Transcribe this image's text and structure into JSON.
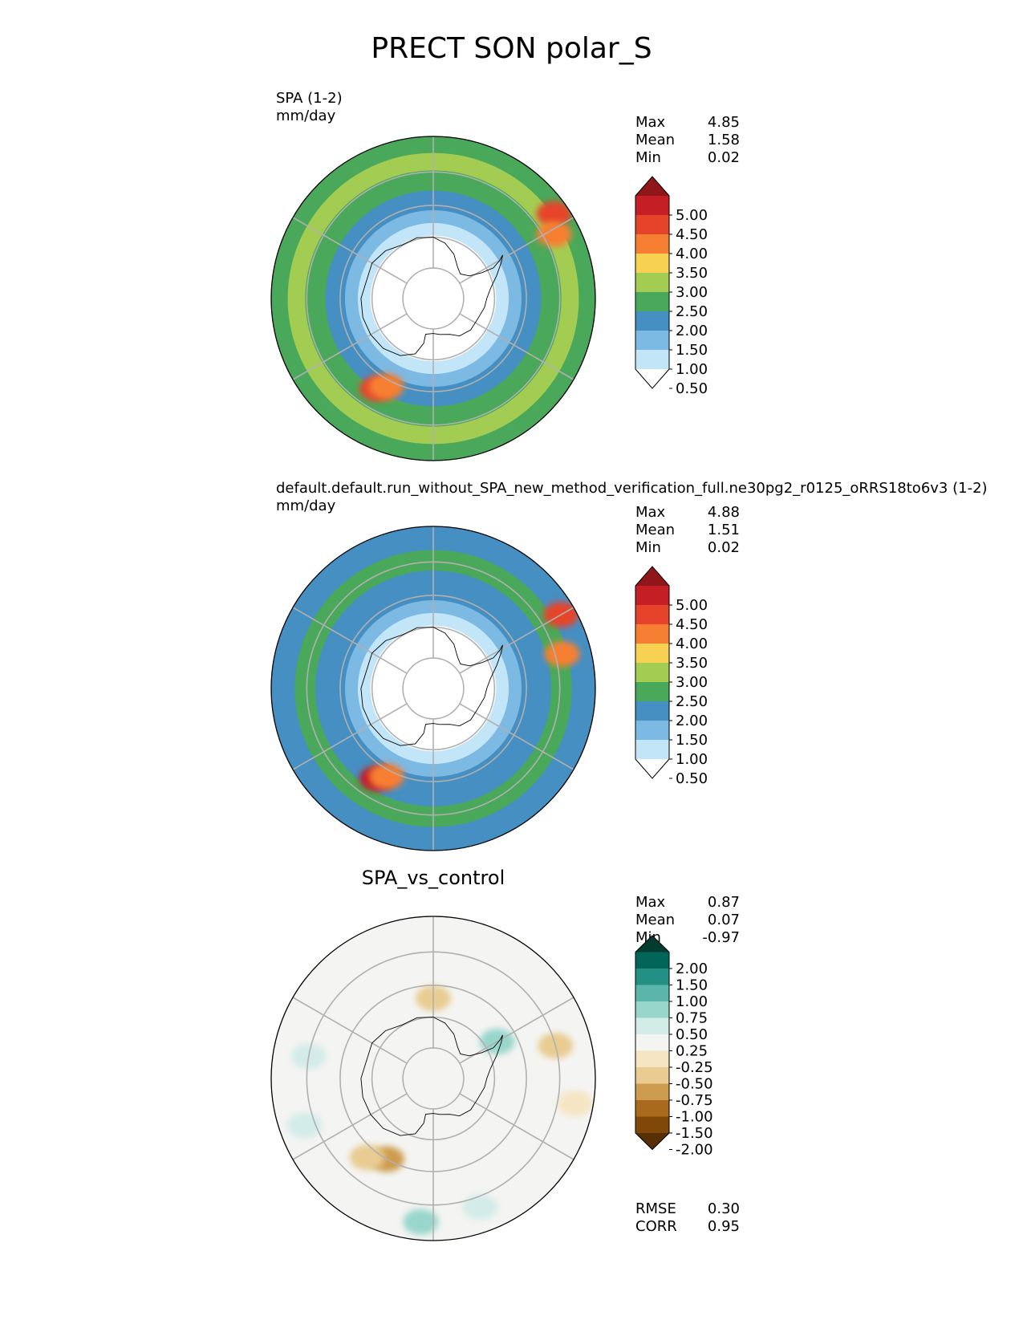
{
  "figure_title": "PRECT SON polar_S",
  "panels": [
    {
      "title": "SPA (1-2)",
      "units": "mm/day",
      "center_title": "",
      "stats": [
        {
          "label": "Max",
          "value": "4.85"
        },
        {
          "label": "Mean",
          "value": "1.58"
        },
        {
          "label": "Min",
          "value": "0.02"
        }
      ],
      "bottom_stats": [],
      "colorbar": {
        "ticks": [
          "5.00",
          "4.50",
          "4.00",
          "3.50",
          "3.00",
          "2.50",
          "2.00",
          "1.50",
          "1.00",
          "0.50"
        ],
        "colors": [
          "#8f1619",
          "#c31f25",
          "#e6442a",
          "#f77f33",
          "#f6d152",
          "#a3cd52",
          "#4aa85a",
          "#458fc2",
          "#7cb9e3",
          "#c3e5f8",
          "#ffffff"
        ]
      }
    },
    {
      "title": "default.default.run_without_SPA_new_method_verification_full.ne30pg2_r0125_oRRS18to6v3 (1-2)",
      "units": "mm/day",
      "center_title": "",
      "stats": [
        {
          "label": "Max",
          "value": "4.88"
        },
        {
          "label": "Mean",
          "value": "1.51"
        },
        {
          "label": "Min",
          "value": "0.02"
        }
      ],
      "bottom_stats": [],
      "colorbar": {
        "ticks": [
          "5.00",
          "4.50",
          "4.00",
          "3.50",
          "3.00",
          "2.50",
          "2.00",
          "1.50",
          "1.00",
          "0.50"
        ],
        "colors": [
          "#8f1619",
          "#c31f25",
          "#e6442a",
          "#f77f33",
          "#f6d152",
          "#a3cd52",
          "#4aa85a",
          "#458fc2",
          "#7cb9e3",
          "#c3e5f8",
          "#ffffff"
        ]
      }
    },
    {
      "title": "",
      "units": "",
      "center_title": "SPA_vs_control",
      "stats": [
        {
          "label": "Max",
          "value": "0.87"
        },
        {
          "label": "Mean",
          "value": "0.07"
        },
        {
          "label": "Min",
          "value": "-0.97"
        }
      ],
      "bottom_stats": [
        {
          "label": "RMSE",
          "value": "0.30"
        },
        {
          "label": "CORR",
          "value": "0.95"
        }
      ],
      "colorbar": {
        "ticks": [
          "2.00",
          "1.50",
          "1.00",
          "0.75",
          "0.50",
          "0.25",
          "-0.25",
          "-0.50",
          "-0.75",
          "-1.00",
          "-1.50",
          "-2.00"
        ],
        "colors": [
          "#023c30",
          "#02655a",
          "#238f85",
          "#5cb5aa",
          "#98d6cc",
          "#d3ece8",
          "#f4f4f2",
          "#f5e5c3",
          "#e8cc92",
          "#cd9c4e",
          "#a96a1e",
          "#7f4808",
          "#563004"
        ]
      }
    }
  ],
  "chart_data": [
    {
      "type": "heatmap",
      "title": "SPA (1-2)",
      "units": "mm/day",
      "projection": "south polar stereographic",
      "levels": [
        0.5,
        1.0,
        1.5,
        2.0,
        2.5,
        3.0,
        3.5,
        4.0,
        4.5,
        5.0
      ],
      "stats": {
        "max": 4.85,
        "mean": 1.58,
        "min": 0.02
      },
      "zones": [
        {
          "lat_from": -90,
          "lat_to": -70,
          "value": 0.3
        },
        {
          "lat_from": -70,
          "lat_to": -66,
          "value": 0.8
        },
        {
          "lat_from": -66,
          "lat_to": -62,
          "value": 1.2
        },
        {
          "lat_from": -62,
          "lat_to": -56,
          "value": 1.7
        },
        {
          "lat_from": -56,
          "lat_to": -50,
          "value": 2.2
        },
        {
          "lat_from": -50,
          "lat_to": -45,
          "value": 2.7
        },
        {
          "lat_from": -45,
          "lat_to": -40,
          "value": 2.2
        }
      ],
      "hotspots": [
        {
          "lat": -44,
          "lon": -55,
          "value": 4.3
        },
        {
          "lat": -47,
          "lon": -62,
          "value": 3.6
        },
        {
          "lat": -56,
          "lon": 148,
          "value": 4.4
        },
        {
          "lat": -58,
          "lon": 152,
          "value": 3.7
        }
      ]
    },
    {
      "type": "heatmap",
      "title": "default.default.run_without_SPA_new_method_verification_full.ne30pg2_r0125_oRRS18to6v3 (1-2)",
      "units": "mm/day",
      "projection": "south polar stereographic",
      "levels": [
        0.5,
        1.0,
        1.5,
        2.0,
        2.5,
        3.0,
        3.5,
        4.0,
        4.5,
        5.0
      ],
      "stats": {
        "max": 4.88,
        "mean": 1.51,
        "min": 0.02
      },
      "zones": [
        {
          "lat_from": -90,
          "lat_to": -70,
          "value": 0.3
        },
        {
          "lat_from": -70,
          "lat_to": -66,
          "value": 0.8
        },
        {
          "lat_from": -66,
          "lat_to": -62,
          "value": 1.2
        },
        {
          "lat_from": -62,
          "lat_to": -53,
          "value": 1.7
        },
        {
          "lat_from": -53,
          "lat_to": -47,
          "value": 2.2
        },
        {
          "lat_from": -47,
          "lat_to": -40,
          "value": 1.8
        }
      ],
      "hotspots": [
        {
          "lat": -44,
          "lon": -60,
          "value": 4.4
        },
        {
          "lat": -48,
          "lon": -75,
          "value": 3.6
        },
        {
          "lat": -56,
          "lon": 148,
          "value": 4.5
        },
        {
          "lat": -58,
          "lon": 152,
          "value": 3.6
        }
      ]
    },
    {
      "type": "heatmap",
      "title": "SPA_vs_control",
      "projection": "south polar stereographic",
      "levels": [
        -2.0,
        -1.5,
        -1.0,
        -0.75,
        -0.5,
        -0.25,
        0.25,
        0.5,
        0.75,
        1.0,
        1.5,
        2.0
      ],
      "stats": {
        "max": 0.87,
        "mean": 0.07,
        "min": -0.97,
        "rmse": 0.3,
        "corr": 0.95
      },
      "zones": [
        {
          "lat_from": -90,
          "lat_to": -40,
          "value": 0.0
        }
      ],
      "hotspots": [
        {
          "lat": -60,
          "lon": 150,
          "value": -0.9
        },
        {
          "lat": -57,
          "lon": 140,
          "value": -0.55
        },
        {
          "lat": -50,
          "lon": -75,
          "value": -0.55
        },
        {
          "lat": -45,
          "lon": -100,
          "value": -0.4
        },
        {
          "lat": -64,
          "lon": 0,
          "value": -0.6
        },
        {
          "lat": -45,
          "lon": 175,
          "value": 0.55
        },
        {
          "lat": -47,
          "lon": -160,
          "value": 0.45
        },
        {
          "lat": -50,
          "lon": 80,
          "value": 0.45
        },
        {
          "lat": -47,
          "lon": 110,
          "value": 0.35
        },
        {
          "lat": -66,
          "lon": -60,
          "value": 0.5
        }
      ]
    }
  ]
}
